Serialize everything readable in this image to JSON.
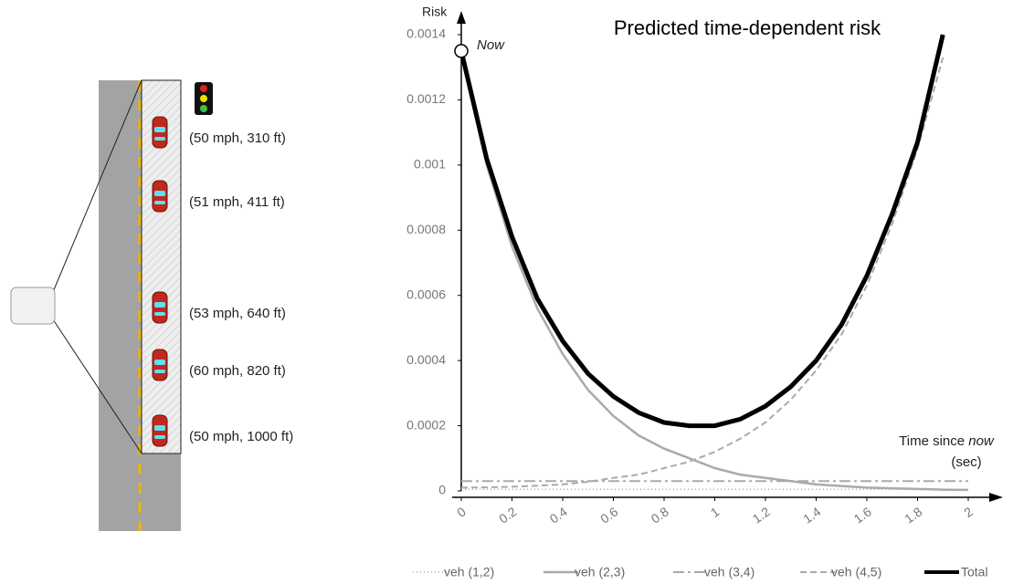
{
  "illustration": {
    "vehicles": [
      "(50 mph, 310 ft)",
      "(51 mph, 411 ft)",
      "(53 mph, 640 ft)",
      "(60 mph, 820 ft)",
      "(50 mph, 1000 ft)"
    ]
  },
  "chart_data": {
    "type": "line",
    "title": "Predicted time-dependent risk",
    "y_label": "Risk",
    "x_label": [
      "Time since",
      "now",
      "(sec)"
    ],
    "annotation": "Now",
    "x": [
      0,
      0.1,
      0.2,
      0.3,
      0.4,
      0.5,
      0.6,
      0.7,
      0.8,
      0.9,
      1,
      1.1,
      1.2,
      1.3,
      1.4,
      1.5,
      1.6,
      1.7,
      1.8,
      1.9,
      2
    ],
    "xlim": [
      0,
      2
    ],
    "xticks": [
      0,
      0.2,
      0.4,
      0.6,
      0.8,
      1,
      1.2,
      1.4,
      1.6,
      1.8,
      2
    ],
    "ylim": [
      0,
      0.0014
    ],
    "yticks": [
      0,
      0.0002,
      0.0004,
      0.0006,
      0.0008,
      0.001,
      0.0012,
      0.0014
    ],
    "series": [
      {
        "name": "veh (1,2)",
        "color": "#aaaaaa",
        "dash": "1,3",
        "width": 1.5,
        "values": [
          5e-06,
          5e-06,
          5e-06,
          5e-06,
          5e-06,
          5e-06,
          5e-06,
          5e-06,
          5e-06,
          5e-06,
          5e-06,
          5e-06,
          5e-06,
          5e-06,
          5e-06,
          5e-06,
          5e-06,
          5e-06,
          5e-06,
          5e-06,
          5e-06
        ]
      },
      {
        "name": "veh (2,3)",
        "color": "#aaaaaa",
        "dash": "none",
        "width": 2.5,
        "values": [
          0.00134,
          0.001,
          0.00075,
          0.00056,
          0.00042,
          0.00031,
          0.00023,
          0.00017,
          0.00013,
          0.0001,
          7e-05,
          5e-05,
          4e-05,
          3e-05,
          2e-05,
          1.5e-05,
          1e-05,
          8e-06,
          6e-06,
          4e-06,
          3e-06
        ]
      },
      {
        "name": "veh (3,4)",
        "color": "#aaaaaa",
        "dash": "12,4,3,4",
        "width": 2,
        "values": [
          3e-05,
          3e-05,
          3e-05,
          3e-05,
          3e-05,
          3e-05,
          3e-05,
          3e-05,
          3e-05,
          3e-05,
          3e-05,
          3e-05,
          3e-05,
          3e-05,
          3e-05,
          3e-05,
          3e-05,
          3e-05,
          3e-05,
          3e-05,
          3e-05
        ]
      },
      {
        "name": "veh (4,5)",
        "color": "#aaaaaa",
        "dash": "7,4",
        "width": 2,
        "values": [
          1e-05,
          1.1e-05,
          1.3e-05,
          1.6e-05,
          2e-05,
          2.8e-05,
          4e-05,
          5e-05,
          7e-05,
          9e-05,
          0.00012,
          0.00016,
          0.00021,
          0.00028,
          0.00037,
          0.00048,
          0.00063,
          0.00082,
          0.00105,
          0.00133,
          null
        ]
      },
      {
        "name": "Total",
        "color": "#000000",
        "dash": "none",
        "width": 5,
        "values": [
          0.00135,
          0.00102,
          0.00078,
          0.00059,
          0.00046,
          0.00036,
          0.00029,
          0.00024,
          0.00021,
          0.0002,
          0.0002,
          0.00022,
          0.00026,
          0.00032,
          0.0004,
          0.00051,
          0.00066,
          0.00085,
          0.00107,
          0.0014,
          null
        ]
      }
    ]
  }
}
